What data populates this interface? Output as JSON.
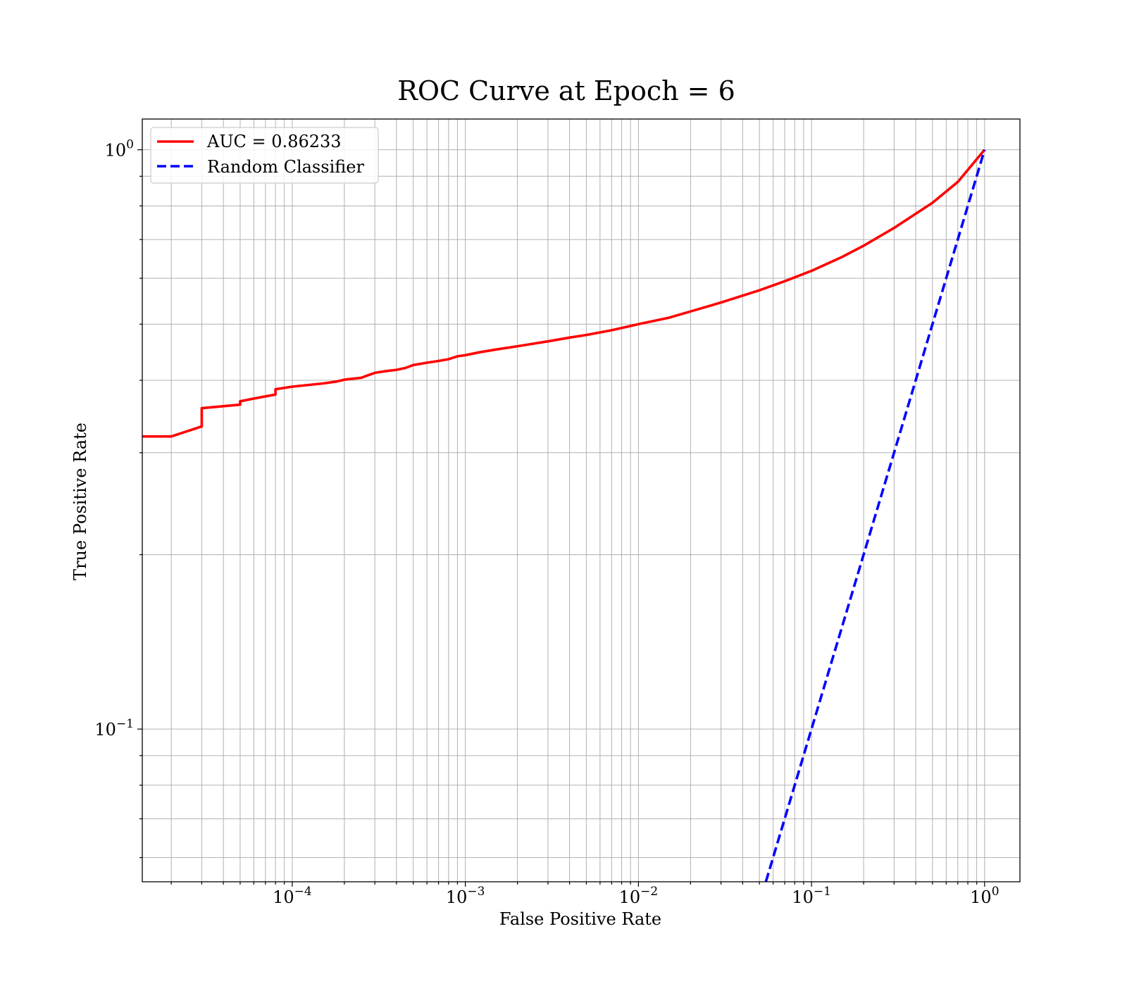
{
  "chart_data": {
    "type": "line",
    "title": "ROC Curve at Epoch = 6",
    "xlabel": "False Positive Rate",
    "ylabel": "True Positive Rate",
    "xscale": "log",
    "yscale": "log",
    "xlim": [
      1.36e-05,
      1.6
    ],
    "ylim": [
      0.0545,
      1.13
    ],
    "grid": "on (major and minor)",
    "legend_position": "upper-left",
    "x_ticks": [
      {
        "value": 0.0001,
        "base": "10",
        "exp": "−4"
      },
      {
        "value": 0.001,
        "base": "10",
        "exp": "−3"
      },
      {
        "value": 0.01,
        "base": "10",
        "exp": "−2"
      },
      {
        "value": 0.1,
        "base": "10",
        "exp": "−1"
      },
      {
        "value": 1,
        "base": "10",
        "exp": "0"
      }
    ],
    "y_ticks": [
      {
        "value": 0.1,
        "base": "10",
        "exp": "−1"
      },
      {
        "value": 1,
        "base": "10",
        "exp": "0"
      }
    ],
    "series": [
      {
        "name": "AUC = 0.86233",
        "color": "#ff0000",
        "style": "solid",
        "x": [
          1.36e-05,
          2e-05,
          3e-05,
          3e-05,
          5e-05,
          5e-05,
          6e-05,
          8e-05,
          8e-05,
          0.0001,
          0.00015,
          0.00018,
          0.0002,
          0.00025,
          0.00028,
          0.0003,
          0.00035,
          0.0004,
          0.00045,
          0.0005,
          0.0006,
          0.0007,
          0.0008,
          0.0009,
          0.001,
          0.0012,
          0.0015,
          0.002,
          0.003,
          0.004,
          0.005,
          0.007,
          0.01,
          0.015,
          0.02,
          0.03,
          0.05,
          0.07,
          0.1,
          0.15,
          0.2,
          0.3,
          0.5,
          0.7,
          1.0
        ],
        "y": [
          0.32,
          0.32,
          0.333,
          0.358,
          0.363,
          0.368,
          0.372,
          0.378,
          0.386,
          0.39,
          0.395,
          0.398,
          0.401,
          0.404,
          0.409,
          0.412,
          0.415,
          0.417,
          0.42,
          0.425,
          0.429,
          0.432,
          0.435,
          0.44,
          0.442,
          0.447,
          0.452,
          0.458,
          0.467,
          0.474,
          0.479,
          0.488,
          0.5,
          0.513,
          0.526,
          0.545,
          0.572,
          0.593,
          0.618,
          0.653,
          0.683,
          0.733,
          0.81,
          0.88,
          1.0
        ]
      },
      {
        "name": "Random Classifier",
        "color": "#0000ff",
        "style": "dashed",
        "x": [
          0.0545,
          1.0
        ],
        "y": [
          0.0545,
          1.0
        ]
      }
    ]
  }
}
